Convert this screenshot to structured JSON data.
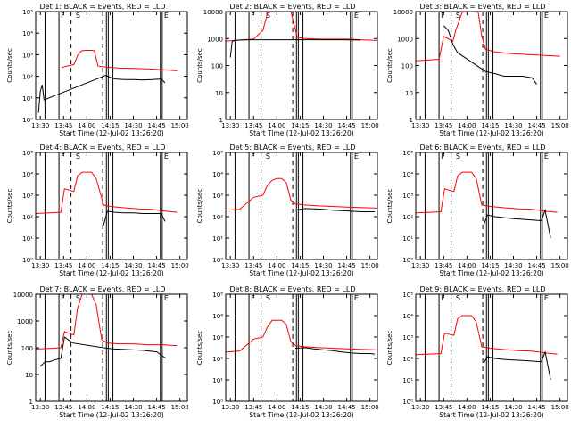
{
  "figure": {
    "xlabel": "Start Time (12-Jul-02 13:26:20)",
    "ylabel": "Counts/sec",
    "xticks": [
      {
        "value": 13.5,
        "label": "13:30"
      },
      {
        "value": 13.75,
        "label": "13:45"
      },
      {
        "value": 14.0,
        "label": "14:00"
      },
      {
        "value": 14.25,
        "label": "14:15"
      },
      {
        "value": 14.5,
        "label": "14:30"
      },
      {
        "value": 14.75,
        "label": "14:45"
      },
      {
        "value": 15.0,
        "label": "15:00"
      }
    ],
    "xlim": [
      13.45,
      15.08
    ],
    "markers": {
      "F": "F",
      "S": "S",
      "E": "E"
    },
    "colors": {
      "events": "#000000",
      "lld": "#ff0000"
    }
  },
  "chart_data": [
    {
      "type": "line",
      "title": "Det 1: BLACK = Events, RED = LLD",
      "ylim": [
        1,
        100000
      ],
      "yticks": [
        {
          "value": 1,
          "label": "10⁰"
        },
        {
          "value": 10,
          "label": "10¹"
        },
        {
          "value": 100,
          "label": "10²"
        },
        {
          "value": 1000,
          "label": "10³"
        },
        {
          "value": 10000,
          "label": "10⁴"
        },
        {
          "value": 100000,
          "label": "10⁵"
        }
      ],
      "series": [
        {
          "name": "LLD",
          "color": "#ff0000",
          "x": [
            13.73,
            13.76,
            13.86,
            13.9,
            13.94,
            13.98,
            14.05,
            14.08,
            14.12,
            14.17,
            14.25,
            14.35,
            14.5,
            14.65,
            14.82,
            14.97
          ],
          "y": [
            250,
            280,
            350,
            900,
            1500,
            1600,
            1600,
            1500,
            300,
            280,
            260,
            240,
            230,
            220,
            200,
            180
          ]
        },
        {
          "name": "Events",
          "color": "#000000",
          "x": [
            13.48,
            13.5,
            13.52,
            13.54,
            14.18,
            14.2,
            14.25,
            14.3,
            14.4,
            14.5,
            14.6,
            14.7,
            14.8,
            14.84
          ],
          "y": [
            2,
            20,
            40,
            8,
            100,
            110,
            90,
            75,
            70,
            70,
            68,
            70,
            75,
            50
          ]
        }
      ]
    },
    {
      "type": "line",
      "title": "Det 2: BLACK = Events, RED = LLD",
      "ylim": [
        1,
        10000
      ],
      "yticks": [
        {
          "value": 1,
          "label": "1"
        },
        {
          "value": 10,
          "label": "10"
        },
        {
          "value": 100,
          "label": "100"
        },
        {
          "value": 1000,
          "label": "1000"
        },
        {
          "value": 10000,
          "label": "10000"
        }
      ],
      "series": [
        {
          "name": "LLD",
          "color": "#ff0000",
          "x": [
            13.45,
            13.55,
            13.65,
            13.75,
            13.85,
            13.9,
            13.95,
            14.05,
            14.15,
            14.22,
            14.3,
            14.45,
            14.6,
            14.75,
            14.9,
            15.08
          ],
          "y": [
            800,
            850,
            900,
            950,
            2000,
            9000,
            10000,
            10000,
            10000,
            1100,
            1000,
            950,
            950,
            950,
            900,
            850
          ]
        },
        {
          "name": "Events",
          "color": "#000000",
          "x": [
            13.5,
            13.52,
            13.55,
            13.6,
            13.7,
            13.8,
            14.2,
            14.3,
            14.5,
            14.7,
            14.9
          ],
          "y": [
            200,
            800,
            850,
            880,
            900,
            900,
            900,
            900,
            900,
            900,
            880
          ]
        }
      ]
    },
    {
      "type": "line",
      "title": "Det 3: BLACK = Events, RED = LLD",
      "ylim": [
        1,
        10000
      ],
      "yticks": [
        {
          "value": 1,
          "label": "1"
        },
        {
          "value": 10,
          "label": "10"
        },
        {
          "value": 100,
          "label": "100"
        },
        {
          "value": 1000,
          "label": "1000"
        },
        {
          "value": 10000,
          "label": "10000"
        }
      ],
      "series": [
        {
          "name": "LLD",
          "color": "#ff0000",
          "x": [
            13.45,
            13.6,
            13.7,
            13.75,
            13.85,
            13.88,
            13.95,
            14.05,
            14.12,
            14.16,
            14.2,
            14.3,
            14.45,
            14.6,
            14.8,
            15.0
          ],
          "y": [
            150,
            160,
            170,
            1200,
            800,
            2000,
            9500,
            10000,
            10000,
            1200,
            400,
            320,
            280,
            260,
            240,
            220
          ]
        },
        {
          "name": "Events",
          "color": "#000000",
          "x": [
            13.75,
            13.8,
            13.85,
            13.9,
            14.2,
            14.3,
            14.4,
            14.5,
            14.6,
            14.7,
            14.75
          ],
          "y": [
            3000,
            2000,
            600,
            300,
            60,
            50,
            40,
            40,
            40,
            35,
            20
          ]
        }
      ]
    },
    {
      "type": "line",
      "title": "Det 4: BLACK = Events, RED = LLD",
      "ylim": [
        1,
        100000
      ],
      "yticks": [
        {
          "value": 1,
          "label": "10⁰"
        },
        {
          "value": 10,
          "label": "10¹"
        },
        {
          "value": 100,
          "label": "10²"
        },
        {
          "value": 1000,
          "label": "10³"
        },
        {
          "value": 10000,
          "label": "10⁴"
        },
        {
          "value": 100000,
          "label": "10⁵"
        }
      ],
      "series": [
        {
          "name": "LLD",
          "color": "#ff0000",
          "x": [
            13.45,
            13.6,
            13.72,
            13.76,
            13.86,
            13.9,
            13.95,
            14.05,
            14.1,
            14.18,
            14.25,
            14.4,
            14.55,
            14.7,
            14.85,
            14.97
          ],
          "y": [
            140,
            150,
            160,
            2000,
            1500,
            8000,
            12000,
            12000,
            6000,
            350,
            300,
            260,
            230,
            220,
            180,
            160
          ]
        },
        {
          "name": "Events",
          "color": "#000000",
          "x": [
            14.18,
            14.22,
            14.3,
            14.4,
            14.5,
            14.6,
            14.7,
            14.8,
            14.84
          ],
          "y": [
            40,
            180,
            160,
            150,
            150,
            140,
            140,
            140,
            60
          ]
        }
      ]
    },
    {
      "type": "line",
      "title": "Det 5: BLACK = Events, RED = LLD",
      "ylim": [
        1,
        100000
      ],
      "yticks": [
        {
          "value": 1,
          "label": "10⁰"
        },
        {
          "value": 10,
          "label": "10¹"
        },
        {
          "value": 100,
          "label": "10²"
        },
        {
          "value": 1000,
          "label": "10³"
        },
        {
          "value": 10000,
          "label": "10⁴"
        },
        {
          "value": 100000,
          "label": "10⁵"
        }
      ],
      "series": [
        {
          "name": "LLD",
          "color": "#ff0000",
          "x": [
            13.45,
            13.6,
            13.75,
            13.85,
            13.9,
            13.95,
            14.0,
            14.05,
            14.1,
            14.15,
            14.2,
            14.3,
            14.45,
            14.6,
            14.75,
            15.08
          ],
          "y": [
            200,
            220,
            800,
            1000,
            3000,
            5000,
            6000,
            6000,
            4000,
            600,
            400,
            350,
            320,
            300,
            280,
            250
          ]
        },
        {
          "name": "Events",
          "color": "#000000",
          "x": [
            14.2,
            14.3,
            14.4,
            14.5,
            14.6,
            14.7,
            14.8,
            14.9,
            15.0,
            15.05
          ],
          "y": [
            200,
            240,
            230,
            220,
            200,
            190,
            180,
            170,
            170,
            170
          ]
        }
      ]
    },
    {
      "type": "line",
      "title": "Det 6: BLACK = Events, RED = LLD",
      "ylim": [
        1,
        100000
      ],
      "yticks": [
        {
          "value": 1,
          "label": "10⁰"
        },
        {
          "value": 10,
          "label": "10¹"
        },
        {
          "value": 100,
          "label": "10²"
        },
        {
          "value": 1000,
          "label": "10³"
        },
        {
          "value": 10000,
          "label": "10⁴"
        },
        {
          "value": 100000,
          "label": "10⁵"
        }
      ],
      "series": [
        {
          "name": "LLD",
          "color": "#ff0000",
          "x": [
            13.45,
            13.6,
            13.72,
            13.76,
            13.86,
            13.9,
            13.95,
            14.05,
            14.1,
            14.16,
            14.25,
            14.4,
            14.55,
            14.7,
            14.85,
            14.97
          ],
          "y": [
            150,
            160,
            170,
            2000,
            1500,
            8000,
            12000,
            12000,
            6000,
            350,
            300,
            260,
            230,
            220,
            180,
            160
          ]
        },
        {
          "name": "Events",
          "color": "#000000",
          "x": [
            14.18,
            14.22,
            14.3,
            14.4,
            14.5,
            14.6,
            14.7,
            14.8,
            14.84,
            14.9
          ],
          "y": [
            40,
            120,
            100,
            90,
            80,
            75,
            70,
            65,
            200,
            10
          ]
        }
      ]
    },
    {
      "type": "line",
      "title": "Det 7: BLACK = Events, RED = LLD",
      "ylim": [
        1,
        10000
      ],
      "yticks": [
        {
          "value": 1,
          "label": "1"
        },
        {
          "value": 10,
          "label": "10"
        },
        {
          "value": 100,
          "label": "100"
        },
        {
          "value": 1000,
          "label": "1000"
        },
        {
          "value": 10000,
          "label": "10000"
        }
      ],
      "series": [
        {
          "name": "LLD",
          "color": "#ff0000",
          "x": [
            13.45,
            13.6,
            13.72,
            13.76,
            13.86,
            13.9,
            13.95,
            14.05,
            14.1,
            14.16,
            14.22,
            14.35,
            14.5,
            14.65,
            14.8,
            14.97
          ],
          "y": [
            90,
            95,
            100,
            400,
            300,
            3000,
            10000,
            10000,
            4000,
            200,
            150,
            140,
            140,
            130,
            130,
            120
          ]
        },
        {
          "name": "Events",
          "color": "#000000",
          "x": [
            13.5,
            13.55,
            13.6,
            13.65,
            13.72,
            13.76,
            13.85,
            14.18,
            14.3,
            14.45,
            14.6,
            14.75,
            14.85
          ],
          "y": [
            20,
            30,
            30,
            35,
            40,
            250,
            150,
            100,
            90,
            85,
            80,
            70,
            40
          ]
        }
      ]
    },
    {
      "type": "line",
      "title": "Det 8: BLACK = Events, RED = LLD",
      "ylim": [
        1,
        100000
      ],
      "yticks": [
        {
          "value": 1,
          "label": "10⁰"
        },
        {
          "value": 10,
          "label": "10¹"
        },
        {
          "value": 100,
          "label": "10²"
        },
        {
          "value": 1000,
          "label": "10³"
        },
        {
          "value": 10000,
          "label": "10⁴"
        },
        {
          "value": 100000,
          "label": "10⁵"
        }
      ],
      "series": [
        {
          "name": "LLD",
          "color": "#ff0000",
          "x": [
            13.45,
            13.6,
            13.75,
            13.85,
            13.9,
            13.95,
            14.0,
            14.05,
            14.1,
            14.15,
            14.2,
            14.3,
            14.45,
            14.6,
            14.75,
            15.08
          ],
          "y": [
            200,
            220,
            800,
            1000,
            3000,
            6000,
            6000,
            6000,
            4000,
            600,
            400,
            350,
            320,
            300,
            280,
            250
          ]
        },
        {
          "name": "Events",
          "color": "#000000",
          "x": [
            14.2,
            14.3,
            14.4,
            14.5,
            14.6,
            14.7,
            14.8,
            14.9,
            15.0,
            15.05
          ],
          "y": [
            300,
            320,
            280,
            250,
            230,
            200,
            180,
            170,
            170,
            160
          ]
        }
      ]
    },
    {
      "type": "line",
      "title": "Det 9: BLACK = Events, RED = LLD",
      "ylim": [
        1,
        100000
      ],
      "yticks": [
        {
          "value": 1,
          "label": "10⁰"
        },
        {
          "value": 10,
          "label": "10¹"
        },
        {
          "value": 100,
          "label": "10²"
        },
        {
          "value": 1000,
          "label": "10³"
        },
        {
          "value": 10000,
          "label": "10⁴"
        },
        {
          "value": 100000,
          "label": "10⁵"
        }
      ],
      "series": [
        {
          "name": "LLD",
          "color": "#ff0000",
          "x": [
            13.45,
            13.6,
            13.72,
            13.76,
            13.86,
            13.9,
            13.95,
            14.05,
            14.1,
            14.16,
            14.25,
            14.4,
            14.55,
            14.7,
            14.85,
            14.97
          ],
          "y": [
            150,
            160,
            170,
            1500,
            1200,
            7000,
            10000,
            10000,
            5000,
            350,
            300,
            260,
            230,
            220,
            180,
            160
          ]
        },
        {
          "name": "Events",
          "color": "#000000",
          "x": [
            14.18,
            14.22,
            14.3,
            14.4,
            14.5,
            14.6,
            14.7,
            14.8,
            14.84,
            14.9
          ],
          "y": [
            60,
            120,
            100,
            90,
            85,
            80,
            75,
            70,
            200,
            10
          ]
        }
      ]
    }
  ]
}
